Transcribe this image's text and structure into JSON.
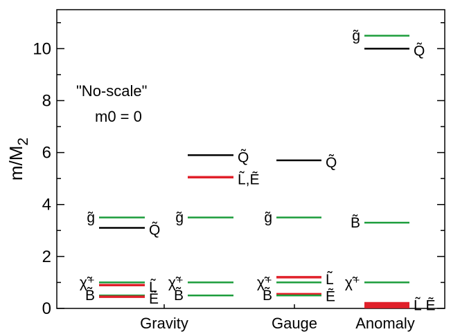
{
  "chart_data": {
    "type": "level-diagram",
    "ylabel_main": "m/M",
    "ylabel_sub": "2",
    "ylim": [
      0,
      11.5
    ],
    "yticks": [
      "0",
      "2",
      "4",
      "6",
      "8",
      "10"
    ],
    "categories": [
      "Gravity",
      "Gauge",
      "Anomaly"
    ],
    "annotation": [
      "\"No-scale\"",
      "m0 = 0"
    ],
    "colors": {
      "gluino": "#1a9c3a",
      "squark": "#000000",
      "slepton": "#e0202a",
      "gaugino": "#1a9c3a"
    },
    "columns": [
      {
        "levels": [
          {
            "y": 3.5,
            "color": "gluino",
            "label": "g̃",
            "side": "left"
          },
          {
            "y": 3.1,
            "color": "squark",
            "label": "Q̃",
            "side": "right"
          },
          {
            "y": 1.0,
            "color": "gaugino",
            "label": "χ̃⁺",
            "side": "left"
          },
          {
            "y": 0.9,
            "color": "slepton",
            "label": "L̃",
            "side": "right"
          },
          {
            "y": 0.5,
            "color": "gaugino",
            "label": "B̃",
            "side": "left"
          },
          {
            "y": 0.45,
            "color": "slepton",
            "label": "Ẽ",
            "side": "right"
          }
        ]
      },
      {
        "levels": [
          {
            "y": 5.9,
            "color": "squark",
            "label": "Q̃",
            "side": "right"
          },
          {
            "y": 5.05,
            "color": "slepton",
            "label": "L̃,Ẽ",
            "side": "right"
          },
          {
            "y": 3.5,
            "color": "gluino",
            "label": "g̃",
            "side": "left"
          },
          {
            "y": 1.0,
            "color": "gaugino",
            "label": "χ̃⁺",
            "side": "left"
          },
          {
            "y": 0.5,
            "color": "gaugino",
            "label": "B̃",
            "side": "left"
          }
        ]
      },
      {
        "levels": [
          {
            "y": 5.7,
            "color": "squark",
            "label": "Q̃",
            "side": "right"
          },
          {
            "y": 3.5,
            "color": "gluino",
            "label": "g̃",
            "side": "left"
          },
          {
            "y": 1.2,
            "color": "slepton",
            "label": "L̃",
            "side": "right"
          },
          {
            "y": 1.0,
            "color": "gaugino",
            "label": "χ̃⁺",
            "side": "left"
          },
          {
            "y": 0.55,
            "color": "slepton",
            "label": "Ẽ",
            "side": "right"
          },
          {
            "y": 0.5,
            "color": "gaugino",
            "label": "B̃",
            "side": "left"
          }
        ]
      },
      {
        "levels": [
          {
            "y": 10.5,
            "color": "gluino",
            "label": "g̃",
            "side": "left"
          },
          {
            "y": 10.0,
            "color": "squark",
            "label": "Q̃",
            "side": "right"
          },
          {
            "y": 3.3,
            "color": "gaugino",
            "label": "B̃",
            "side": "left"
          },
          {
            "y": 1.0,
            "color": "gaugino",
            "label": "χ̃⁺",
            "side": "left"
          },
          {
            "y": 0.2,
            "color": "slepton",
            "label": "L̃ Ẽ",
            "side": "right"
          },
          {
            "y": 0.12,
            "color": "slepton",
            "label": "",
            "side": "right"
          },
          {
            "y": 0.05,
            "color": "slepton",
            "label": "",
            "side": "right"
          }
        ]
      }
    ]
  }
}
